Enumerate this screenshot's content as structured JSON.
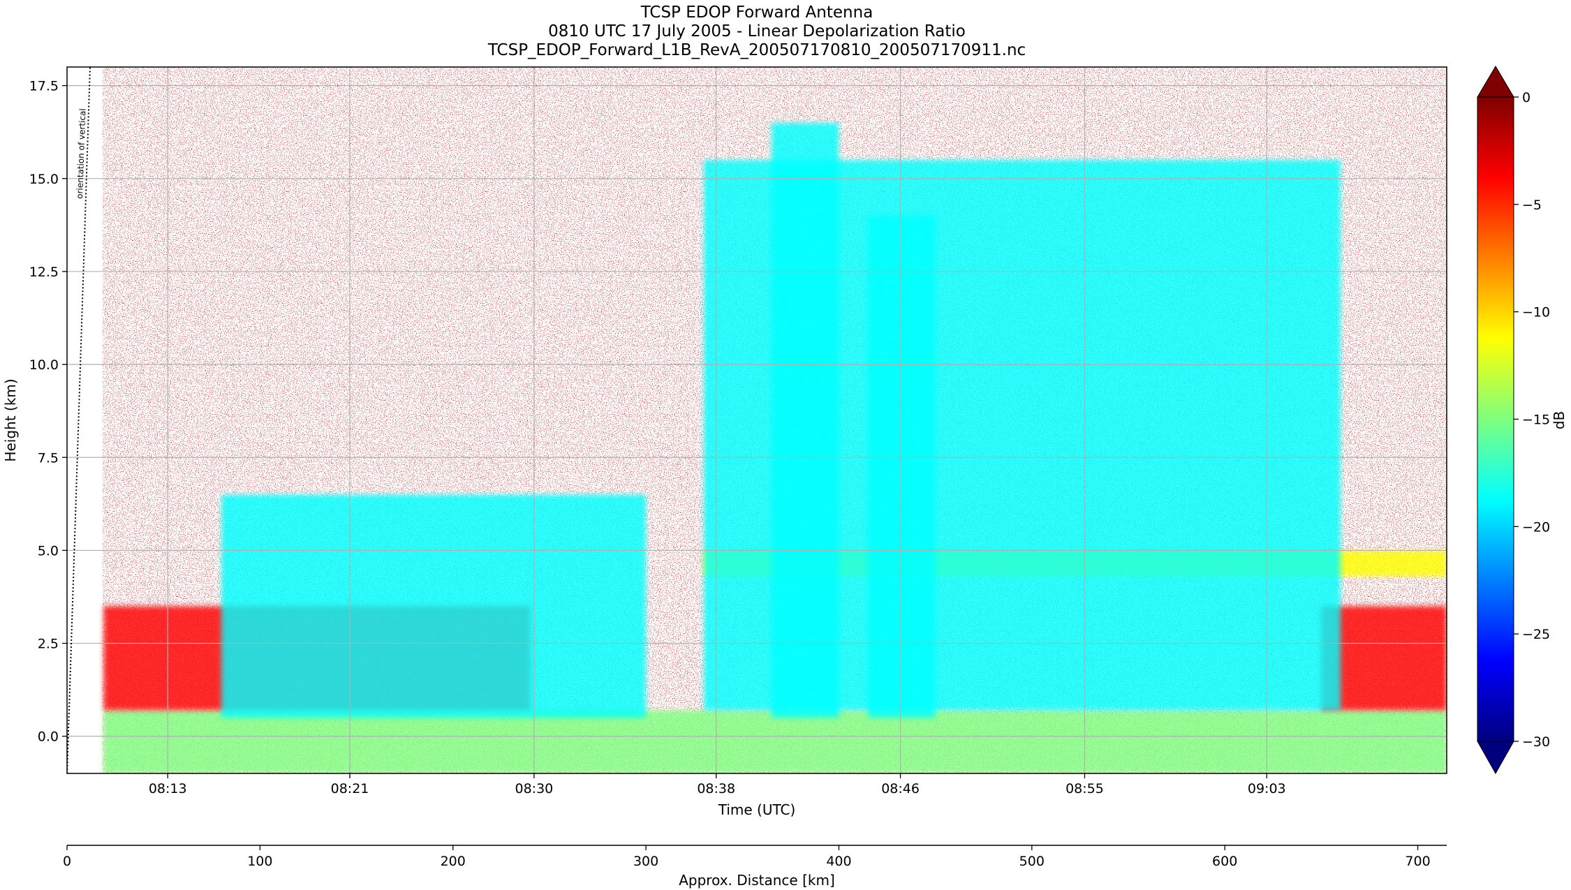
{
  "chart_data": {
    "type": "heatmap",
    "title_lines": [
      "TCSP EDOP Forward Antenna",
      "0810 UTC 17 July 2005 - Linear Depolarization Ratio",
      "TCSP_EDOP_Forward_L1B_RevA_200507170810_200507170911.nc"
    ],
    "xlabel": "Time (UTC)",
    "ylabel": "Height (km)",
    "x2label": "Approx. Distance [km]",
    "colorbar_label": "dB",
    "x_ticks": [
      "08:13",
      "08:21",
      "08:30",
      "08:38",
      "08:46",
      "08:55",
      "09:03"
    ],
    "x_range_minutes": [
      -1.8,
      62.6
    ],
    "x_tick_minutes": [
      2.9,
      11.4,
      20.0,
      28.5,
      37.1,
      45.7,
      54.2
    ],
    "y_ticks": [
      0.0,
      2.5,
      5.0,
      7.5,
      10.0,
      12.5,
      15.0,
      17.5
    ],
    "ylim": [
      -1.0,
      18.0
    ],
    "x2_ticks": [
      0,
      100,
      200,
      300,
      400,
      500,
      600,
      700
    ],
    "x2lim": [
      0,
      715
    ],
    "colorbar_ticks": [
      0,
      -5,
      -10,
      -15,
      -20,
      -25,
      -30
    ],
    "colorbar_range": [
      -30,
      0
    ],
    "grid": true,
    "annotation": "orientation of vertical",
    "colormap": [
      "#00007f",
      "#0000ff",
      "#007fff",
      "#00ffff",
      "#7fff7f",
      "#ffff00",
      "#ff7f00",
      "#ff0000",
      "#7f0000"
    ],
    "features": [
      {
        "name": "surface-band",
        "x_km": [
          19,
          715
        ],
        "height_km": [
          -1.0,
          0.7
        ],
        "value_db": -15
      },
      {
        "name": "boundary-layer-clutter-left",
        "x_km": [
          19,
          240
        ],
        "height_km": [
          0.7,
          3.5
        ],
        "value_db": -3
      },
      {
        "name": "boundary-layer-clutter-right",
        "x_km": [
          650,
          715
        ],
        "height_km": [
          0.7,
          3.5
        ],
        "value_db": -3
      },
      {
        "name": "melting-layer",
        "x_km": [
          330,
          715
        ],
        "height_km": [
          4.3,
          5.0
        ],
        "value_db": -12
      },
      {
        "name": "convective-core-1",
        "x_km": [
          365,
          400
        ],
        "height_km": [
          0.5,
          16.5
        ],
        "value_db": -20
      },
      {
        "name": "convective-core-2",
        "x_km": [
          415,
          450
        ],
        "height_km": [
          0.5,
          14.0
        ],
        "value_db": -20
      },
      {
        "name": "stratiform-anvil",
        "x_km": [
          330,
          660
        ],
        "height_km": [
          0.7,
          15.5
        ],
        "value_db": -18
      },
      {
        "name": "shallow-convection",
        "x_km": [
          80,
          300
        ],
        "height_km": [
          0.5,
          6.5
        ],
        "value_db": -19
      }
    ]
  }
}
